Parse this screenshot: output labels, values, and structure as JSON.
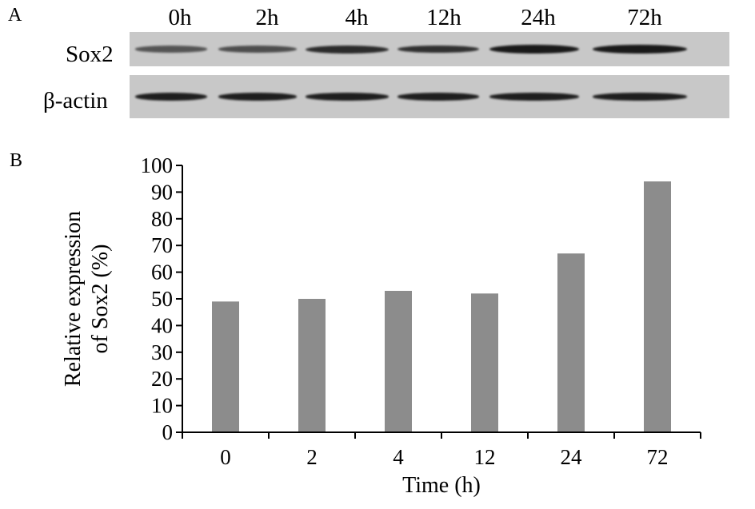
{
  "panel_a": {
    "letter": "A",
    "lanes": [
      "0h",
      "2h",
      "4h",
      "12h",
      "24h",
      "72h"
    ],
    "rows": [
      {
        "label": "Sox2",
        "band_intensity": [
          0.45,
          0.5,
          0.8,
          0.75,
          0.95,
          0.95
        ]
      },
      {
        "label": "β-actin",
        "band_intensity": [
          0.9,
          0.9,
          0.9,
          0.9,
          0.9,
          0.9
        ]
      }
    ],
    "strip_color": "#c8c8c8",
    "band_color": "#141414"
  },
  "panel_b": {
    "letter": "B"
  },
  "chart_data": {
    "type": "bar",
    "categories": [
      "0",
      "2",
      "4",
      "12",
      "24",
      "72"
    ],
    "values": [
      49,
      50,
      53,
      52,
      67,
      94
    ],
    "title": "",
    "xlabel": "Time (h)",
    "ylabel_lines": [
      "Relative expression",
      "of Sox2 (%)"
    ],
    "ylim": [
      0,
      100
    ],
    "yticks": [
      0,
      10,
      20,
      30,
      40,
      50,
      60,
      70,
      80,
      90,
      100
    ],
    "grid": false,
    "legend": "none",
    "bar_color": "#8c8c8c"
  }
}
